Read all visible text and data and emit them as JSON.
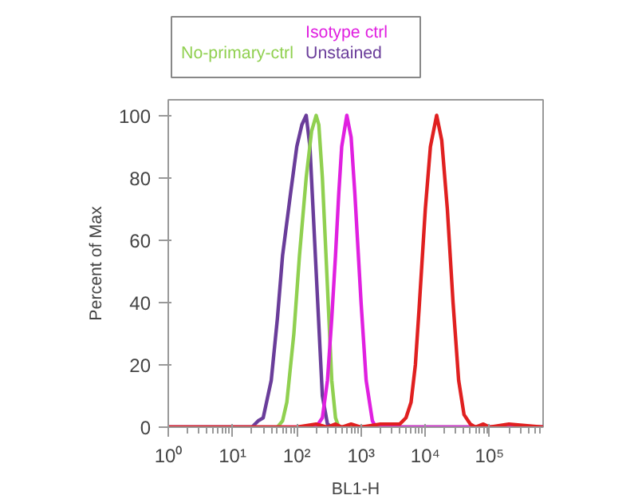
{
  "chart_data": {
    "type": "line",
    "xlabel": "BL1-H",
    "ylabel": "Percent of Max",
    "log": "x",
    "grid": false,
    "marker": "none",
    "line_style": "solid",
    "xlim": [
      1,
      680000
    ],
    "ylim": [
      0,
      105
    ],
    "xticks": [
      {
        "value": 1,
        "label": "10⁰"
      },
      {
        "value": 10,
        "label": "10¹"
      },
      {
        "value": 100,
        "label": "10²"
      },
      {
        "value": 1000,
        "label": "10³"
      },
      {
        "value": 10000,
        "label": "10⁴"
      },
      {
        "value": 100000,
        "label": "10⁵"
      }
    ],
    "yticks": [
      0,
      20,
      40,
      60,
      80,
      100
    ],
    "series": [
      {
        "color": "#e02020",
        "x": [
          1,
          100,
          200,
          300,
          400,
          500,
          700,
          1000,
          2000,
          3000,
          4000,
          5000,
          6000,
          7000,
          8000,
          10000,
          12000,
          15000,
          18000,
          22000,
          27000,
          33000,
          40000,
          50000,
          60000,
          80000,
          100000,
          200000,
          680000
        ],
        "values": [
          0,
          0,
          1,
          0,
          1,
          0,
          1,
          0,
          1,
          1,
          1,
          3,
          8,
          20,
          38,
          70,
          90,
          100,
          92,
          70,
          40,
          15,
          4,
          1,
          0,
          1,
          0,
          1,
          0
        ]
      },
      {
        "name": "Isotype ctrl",
        "color": "#e020e0",
        "x": [
          1,
          200,
          250,
          300,
          350,
          400,
          450,
          500,
          600,
          700,
          800,
          1000,
          1200,
          1500,
          1700,
          680000
        ],
        "values": [
          0,
          0,
          3,
          15,
          35,
          55,
          75,
          90,
          100,
          93,
          75,
          40,
          15,
          2,
          0,
          0
        ]
      },
      {
        "name": "No-primary-ctrl",
        "color": "#90d050",
        "x": [
          1,
          50,
          60,
          70,
          90,
          110,
          140,
          170,
          200,
          220,
          250,
          300,
          350,
          400,
          450,
          680000
        ],
        "values": [
          0,
          0,
          2,
          8,
          30,
          55,
          80,
          95,
          100,
          97,
          80,
          45,
          15,
          3,
          0,
          0
        ]
      },
      {
        "name": "Unstained",
        "color": "#6a3d9a",
        "x": [
          1,
          20,
          25,
          30,
          40,
          50,
          60,
          80,
          100,
          120,
          140,
          160,
          200,
          250,
          300,
          350,
          680000
        ],
        "values": [
          0,
          0,
          2,
          3,
          15,
          35,
          55,
          75,
          90,
          97,
          100,
          90,
          50,
          10,
          1,
          0,
          0
        ]
      }
    ]
  }
}
